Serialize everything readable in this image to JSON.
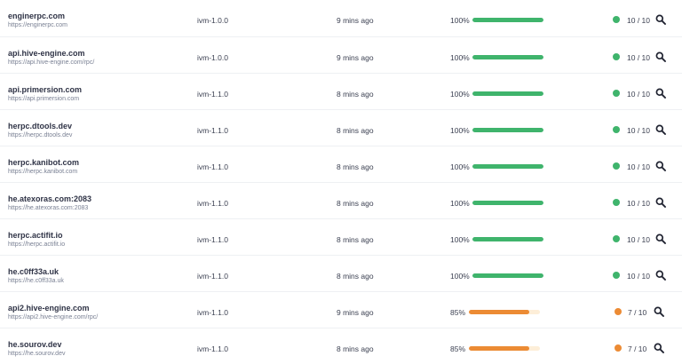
{
  "colors": {
    "ok": "#3fb46c",
    "warn": "#ec8b34"
  },
  "icons": {
    "search": "magnifier-icon",
    "status": "status-dot-icon"
  },
  "nodes": [
    {
      "name": "enginerpc.com",
      "url": "https://enginerpc.com",
      "version": "ivm-1.0.0",
      "updated": "9 mins ago",
      "score_label": "100%",
      "score": 100,
      "status": "ok",
      "tests": "10 / 10"
    },
    {
      "name": "api.hive-engine.com",
      "url": "https://api.hive-engine.com/rpc/",
      "version": "ivm-1.0.0",
      "updated": "9 mins ago",
      "score_label": "100%",
      "score": 100,
      "status": "ok",
      "tests": "10 / 10"
    },
    {
      "name": "api.primersion.com",
      "url": "https://api.primersion.com",
      "version": "ivm-1.1.0",
      "updated": "8 mins ago",
      "score_label": "100%",
      "score": 100,
      "status": "ok",
      "tests": "10 / 10"
    },
    {
      "name": "herpc.dtools.dev",
      "url": "https://herpc.dtools.dev",
      "version": "ivm-1.1.0",
      "updated": "8 mins ago",
      "score_label": "100%",
      "score": 100,
      "status": "ok",
      "tests": "10 / 10"
    },
    {
      "name": "herpc.kanibot.com",
      "url": "https://herpc.kanibot.com",
      "version": "ivm-1.1.0",
      "updated": "8 mins ago",
      "score_label": "100%",
      "score": 100,
      "status": "ok",
      "tests": "10 / 10"
    },
    {
      "name": "he.atexoras.com:2083",
      "url": "https://he.atexoras.com:2083",
      "version": "ivm-1.1.0",
      "updated": "8 mins ago",
      "score_label": "100%",
      "score": 100,
      "status": "ok",
      "tests": "10 / 10"
    },
    {
      "name": "herpc.actifit.io",
      "url": "https://herpc.actifit.io",
      "version": "ivm-1.1.0",
      "updated": "8 mins ago",
      "score_label": "100%",
      "score": 100,
      "status": "ok",
      "tests": "10 / 10"
    },
    {
      "name": "he.c0ff33a.uk",
      "url": "https://he.c0ff33a.uk",
      "version": "ivm-1.1.0",
      "updated": "8 mins ago",
      "score_label": "100%",
      "score": 100,
      "status": "ok",
      "tests": "10 / 10"
    },
    {
      "name": "api2.hive-engine.com",
      "url": "https://api2.hive-engine.com/rpc/",
      "version": "ivm-1.1.0",
      "updated": "9 mins ago",
      "score_label": "85%",
      "score": 85,
      "status": "warn",
      "tests": "7 / 10"
    },
    {
      "name": "he.sourov.dev",
      "url": "https://he.sourov.dev",
      "version": "ivm-1.1.0",
      "updated": "8 mins ago",
      "score_label": "85%",
      "score": 85,
      "status": "warn",
      "tests": "7 / 10"
    }
  ]
}
